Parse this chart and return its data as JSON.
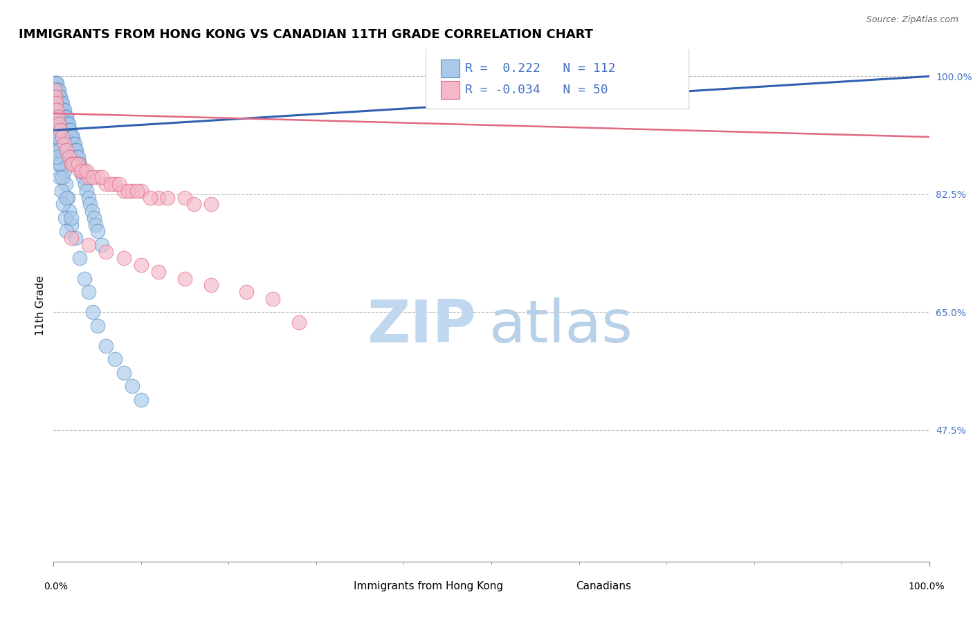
{
  "title": "IMMIGRANTS FROM HONG KONG VS CANADIAN 11TH GRADE CORRELATION CHART",
  "source_text": "Source: ZipAtlas.com",
  "ylabel": "11th Grade",
  "x_min": 0.0,
  "x_max": 1.0,
  "y_min": 0.28,
  "y_max": 1.04,
  "y_ticks": [
    1.0,
    0.825,
    0.65,
    0.475
  ],
  "y_tick_labels": [
    "100.0%",
    "82.5%",
    "65.0%",
    "47.5%"
  ],
  "legend_r1": "R =  0.222",
  "legend_n1": "N = 112",
  "legend_r2": "R = -0.034",
  "legend_n2": "N = 50",
  "blue_color": "#aac8e8",
  "pink_color": "#f4b8c8",
  "blue_edge_color": "#5590c8",
  "pink_edge_color": "#e06880",
  "blue_line_color": "#3060b0",
  "pink_line_color": "#e06880",
  "text_blue_color": "#4472c4",
  "watermark_zip_color": "#c0d8ee",
  "watermark_atlas_color": "#b8d0e8",
  "blue_scatter_x": [
    0.001,
    0.001,
    0.002,
    0.002,
    0.002,
    0.003,
    0.003,
    0.003,
    0.003,
    0.004,
    0.004,
    0.004,
    0.004,
    0.005,
    0.005,
    0.005,
    0.005,
    0.006,
    0.006,
    0.006,
    0.006,
    0.007,
    0.007,
    0.007,
    0.007,
    0.008,
    0.008,
    0.008,
    0.009,
    0.009,
    0.01,
    0.01,
    0.01,
    0.011,
    0.011,
    0.012,
    0.012,
    0.013,
    0.013,
    0.014,
    0.014,
    0.015,
    0.015,
    0.016,
    0.016,
    0.017,
    0.018,
    0.019,
    0.02,
    0.021,
    0.022,
    0.023,
    0.024,
    0.025,
    0.026,
    0.027,
    0.028,
    0.029,
    0.03,
    0.032,
    0.034,
    0.036,
    0.038,
    0.04,
    0.042,
    0.044,
    0.046,
    0.048,
    0.05,
    0.055,
    0.001,
    0.002,
    0.003,
    0.004,
    0.005,
    0.006,
    0.007,
    0.008,
    0.009,
    0.01,
    0.012,
    0.014,
    0.016,
    0.018,
    0.02,
    0.003,
    0.005,
    0.007,
    0.009,
    0.011,
    0.013,
    0.015,
    0.002,
    0.004,
    0.006,
    0.008,
    0.01,
    0.015,
    0.02,
    0.025,
    0.03,
    0.035,
    0.04,
    0.045,
    0.05,
    0.06,
    0.07,
    0.08,
    0.09,
    0.1,
    0.002,
    0.004
  ],
  "blue_scatter_y": [
    0.99,
    0.98,
    0.99,
    0.98,
    0.97,
    0.99,
    0.98,
    0.97,
    0.96,
    0.99,
    0.98,
    0.97,
    0.96,
    0.98,
    0.97,
    0.96,
    0.95,
    0.98,
    0.97,
    0.96,
    0.95,
    0.97,
    0.96,
    0.95,
    0.94,
    0.97,
    0.96,
    0.95,
    0.96,
    0.95,
    0.96,
    0.95,
    0.94,
    0.95,
    0.94,
    0.95,
    0.94,
    0.94,
    0.93,
    0.94,
    0.93,
    0.94,
    0.93,
    0.93,
    0.92,
    0.93,
    0.92,
    0.92,
    0.91,
    0.91,
    0.91,
    0.9,
    0.9,
    0.89,
    0.89,
    0.88,
    0.88,
    0.87,
    0.87,
    0.86,
    0.85,
    0.84,
    0.83,
    0.82,
    0.81,
    0.8,
    0.79,
    0.78,
    0.77,
    0.75,
    0.97,
    0.96,
    0.95,
    0.94,
    0.93,
    0.92,
    0.91,
    0.9,
    0.89,
    0.88,
    0.86,
    0.84,
    0.82,
    0.8,
    0.78,
    0.89,
    0.87,
    0.85,
    0.83,
    0.81,
    0.79,
    0.77,
    0.93,
    0.91,
    0.89,
    0.87,
    0.85,
    0.82,
    0.79,
    0.76,
    0.73,
    0.7,
    0.68,
    0.65,
    0.63,
    0.6,
    0.58,
    0.56,
    0.54,
    0.52,
    0.92,
    0.88
  ],
  "pink_scatter_x": [
    0.001,
    0.002,
    0.003,
    0.004,
    0.005,
    0.006,
    0.008,
    0.01,
    0.012,
    0.015,
    0.018,
    0.02,
    0.025,
    0.03,
    0.035,
    0.04,
    0.05,
    0.06,
    0.07,
    0.08,
    0.09,
    0.1,
    0.12,
    0.15,
    0.18,
    0.022,
    0.028,
    0.032,
    0.038,
    0.045,
    0.055,
    0.065,
    0.075,
    0.085,
    0.095,
    0.11,
    0.13,
    0.16,
    0.02,
    0.04,
    0.06,
    0.08,
    0.1,
    0.12,
    0.15,
    0.18,
    0.22,
    0.25,
    0.5,
    0.28
  ],
  "pink_scatter_y": [
    0.98,
    0.97,
    0.96,
    0.95,
    0.94,
    0.93,
    0.92,
    0.91,
    0.9,
    0.89,
    0.88,
    0.87,
    0.87,
    0.86,
    0.86,
    0.85,
    0.85,
    0.84,
    0.84,
    0.83,
    0.83,
    0.83,
    0.82,
    0.82,
    0.81,
    0.87,
    0.87,
    0.86,
    0.86,
    0.85,
    0.85,
    0.84,
    0.84,
    0.83,
    0.83,
    0.82,
    0.82,
    0.81,
    0.76,
    0.75,
    0.74,
    0.73,
    0.72,
    0.71,
    0.7,
    0.69,
    0.68,
    0.67,
    0.97,
    0.635
  ],
  "blue_trend_x": [
    0.0,
    1.0
  ],
  "blue_trend_y": [
    0.92,
    1.0
  ],
  "pink_trend_x": [
    0.0,
    1.0
  ],
  "pink_trend_y": [
    0.945,
    0.91
  ],
  "hline_y": [
    1.0,
    0.825,
    0.65,
    0.475
  ],
  "title_fontsize": 13,
  "axis_label_fontsize": 11,
  "tick_fontsize": 10,
  "legend_fontsize": 13
}
